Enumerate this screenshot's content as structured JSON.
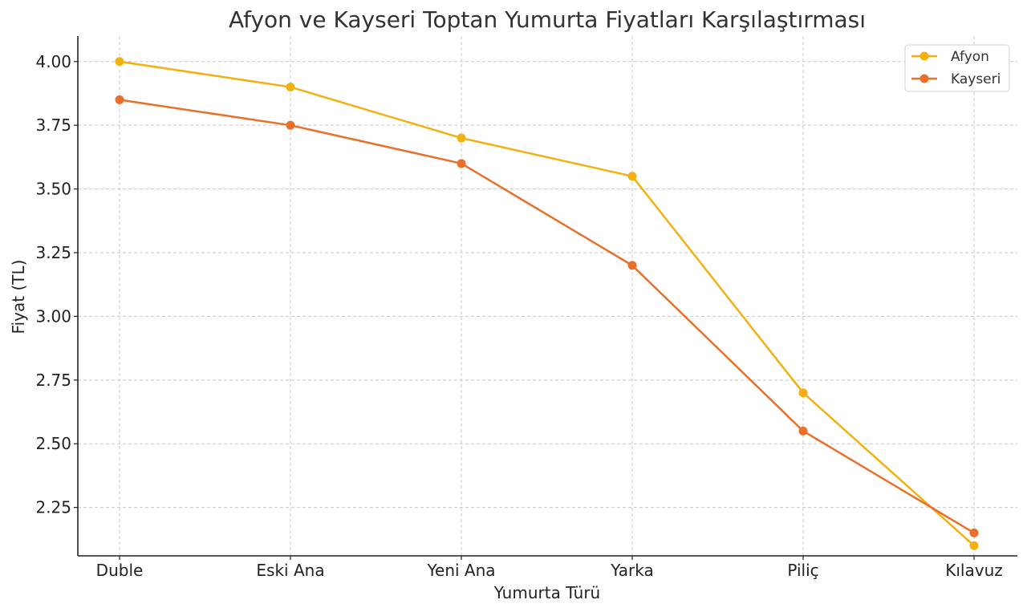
{
  "chart_data": {
    "type": "line",
    "title": "Afyon ve Kayseri Toptan Yumurta Fiyatları Karşılaştırması",
    "xlabel": "Yumurta Türü",
    "ylabel": "Fiyat (TL)",
    "categories": [
      "Duble",
      "Eski Ana",
      "Yeni Ana",
      "Yarka",
      "Piliç",
      "Kılavuz"
    ],
    "ylim": [
      2.06,
      4.1
    ],
    "yticks": [
      "2.25",
      "2.50",
      "2.75",
      "3.00",
      "3.25",
      "3.50",
      "3.75",
      "4.00"
    ],
    "grid": true,
    "legend_position": "top-right",
    "series": [
      {
        "name": "Afyon",
        "color": "#F2B110",
        "values": [
          4.0,
          3.9,
          3.7,
          3.55,
          2.7,
          2.1
        ]
      },
      {
        "name": "Kayseri",
        "color": "#E8702A",
        "values": [
          3.85,
          3.75,
          3.6,
          3.2,
          2.55,
          2.15
        ]
      }
    ]
  }
}
